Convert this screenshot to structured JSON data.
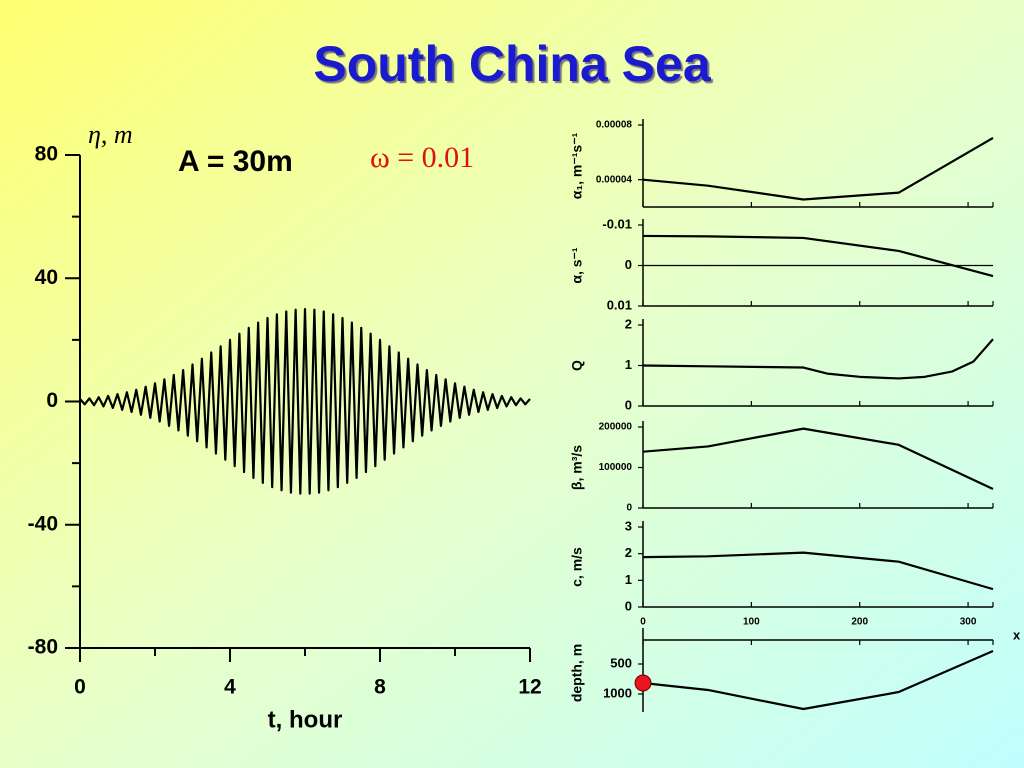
{
  "title": "South China Sea",
  "profile_axis": {
    "xlim": [
      0,
      323
    ],
    "xticks": [
      0,
      100,
      200,
      300
    ],
    "xlabel": "x"
  },
  "chart_data": [
    {
      "type": "line",
      "ylabel": "η, m",
      "xlabel": "t, hour",
      "annotations": [
        "A = 30m",
        "ω = 0.01"
      ],
      "color": "#000000",
      "xlim": [
        0,
        12
      ],
      "xticks": [
        0,
        4,
        8,
        12
      ],
      "xminorticks": [
        2,
        6,
        10
      ],
      "ylim": [
        -80,
        80
      ],
      "yticks": [
        80,
        40,
        0,
        -40,
        -80
      ],
      "yminorticks": [
        60,
        20,
        -20,
        -60
      ],
      "x": [
        0,
        0.125,
        0.25,
        0.375,
        0.5,
        0.625,
        0.75,
        0.875,
        1,
        1.125,
        1.25,
        1.375,
        1.5,
        1.625,
        1.75,
        1.875,
        2,
        2.125,
        2.25,
        2.375,
        2.5,
        2.625,
        2.75,
        2.875,
        3,
        3.125,
        3.25,
        3.375,
        3.5,
        3.625,
        3.75,
        3.875,
        4,
        4.125,
        4.25,
        4.375,
        4.5,
        4.625,
        4.75,
        4.875,
        5,
        5.125,
        5.25,
        5.375,
        5.5,
        5.625,
        5.75,
        5.875,
        6,
        6.125,
        6.25,
        6.375,
        6.5,
        6.625,
        6.75,
        6.875,
        7,
        7.125,
        7.25,
        7.375,
        7.5,
        7.625,
        7.75,
        7.875,
        8,
        8.125,
        8.25,
        8.375,
        8.5,
        8.625,
        8.75,
        8.875,
        9,
        9.125,
        9.25,
        9.375,
        9.5,
        9.625,
        9.75,
        9.875,
        10,
        10.125,
        10.25,
        10.375,
        10.5,
        10.625,
        10.75,
        10.875,
        11,
        11.125,
        11.25,
        11.375,
        11.5,
        11.625,
        11.75,
        11.875,
        12
      ],
      "values": [
        0.8,
        -0.9,
        1.0,
        -1.2,
        1.4,
        -1.6,
        1.8,
        -2.1,
        2.4,
        -2.7,
        3.0,
        -3.4,
        3.8,
        -4.3,
        4.8,
        -5.3,
        5.9,
        -6.5,
        7.2,
        -7.9,
        8.6,
        -9.4,
        10.2,
        -11.1,
        12.0,
        -12.9,
        13.9,
        -14.9,
        15.9,
        -16.9,
        17.9,
        -18.9,
        20.0,
        -21.0,
        22.0,
        -22.9,
        23.9,
        -24.8,
        25.6,
        -26.4,
        27.1,
        -27.8,
        28.3,
        -28.8,
        29.2,
        -29.6,
        29.8,
        -29.9,
        30.0,
        -29.9,
        29.8,
        -29.6,
        29.2,
        -28.8,
        28.3,
        -27.8,
        27.1,
        -26.4,
        25.6,
        -24.8,
        23.9,
        -22.9,
        22.0,
        -21.0,
        20.0,
        -18.9,
        17.9,
        -16.9,
        15.9,
        -14.9,
        13.9,
        -12.9,
        12.0,
        -11.1,
        10.2,
        -9.4,
        8.6,
        -7.9,
        7.2,
        -6.5,
        5.9,
        -5.3,
        4.8,
        -4.3,
        3.8,
        -3.4,
        3.0,
        -2.7,
        2.4,
        -2.1,
        1.8,
        -1.6,
        1.4,
        -1.2,
        1.0,
        -0.9,
        0.8
      ]
    },
    {
      "type": "line",
      "ylabel": "α₁, m⁻¹s⁻¹",
      "color": "#000000",
      "x_axis": "bottom",
      "ylim": [
        2e-05,
        8e-05
      ],
      "yticks": [
        8e-05,
        4e-05
      ],
      "x": [
        0,
        60,
        148,
        236,
        323
      ],
      "values": [
        4e-05,
        3.56e-05,
        2.55e-05,
        3.05e-05,
        7.05e-05
      ]
    },
    {
      "type": "line",
      "ylabel": "α, s⁻¹",
      "color": "#000000",
      "x_axis": "bottom",
      "zero_line": true,
      "ylim": [
        0.01,
        -0.01
      ],
      "yticks": [
        -0.01,
        0,
        0.01
      ],
      "x": [
        0,
        60,
        148,
        236,
        323
      ],
      "values": [
        -0.0073,
        -0.0072,
        -0.0068,
        -0.0036,
        0.0026
      ]
    },
    {
      "type": "line",
      "ylabel": "Q",
      "color": "#000000",
      "x_axis": "bottom",
      "ylim": [
        0,
        2
      ],
      "yticks": [
        2,
        1,
        0
      ],
      "x": [
        0,
        60,
        148,
        170,
        200,
        236,
        260,
        285,
        305,
        323
      ],
      "values": [
        1.0,
        0.98,
        0.95,
        0.8,
        0.72,
        0.68,
        0.72,
        0.85,
        1.1,
        1.65
      ]
    },
    {
      "type": "line",
      "ylabel": "β, m³/s",
      "color": "#000000",
      "x_axis": "bottom",
      "ylim": [
        0,
        200000
      ],
      "yticks": [
        200000,
        100000,
        0
      ],
      "x": [
        0,
        60,
        148,
        236,
        323
      ],
      "values": [
        139000,
        152000,
        196000,
        156000,
        47000
      ]
    },
    {
      "type": "line",
      "ylabel": "c, m/s",
      "color": "#000000",
      "x_axis": "bottom",
      "x_tick_labels": true,
      "ylim": [
        0,
        3
      ],
      "yticks": [
        3,
        2,
        1,
        0
      ],
      "x": [
        0,
        60,
        148,
        236,
        323
      ],
      "values": [
        1.87,
        1.9,
        2.04,
        1.7,
        0.67
      ]
    },
    {
      "type": "line",
      "ylabel": "depth, m",
      "color": "#000000",
      "x_axis": "top",
      "marker_color": "#e8141e",
      "ylim": [
        1300,
        0
      ],
      "yticks": [
        500,
        1000
      ],
      "x": [
        0,
        60,
        148,
        236,
        323
      ],
      "values": [
        817,
        933,
        1250,
        967,
        283
      ]
    }
  ]
}
